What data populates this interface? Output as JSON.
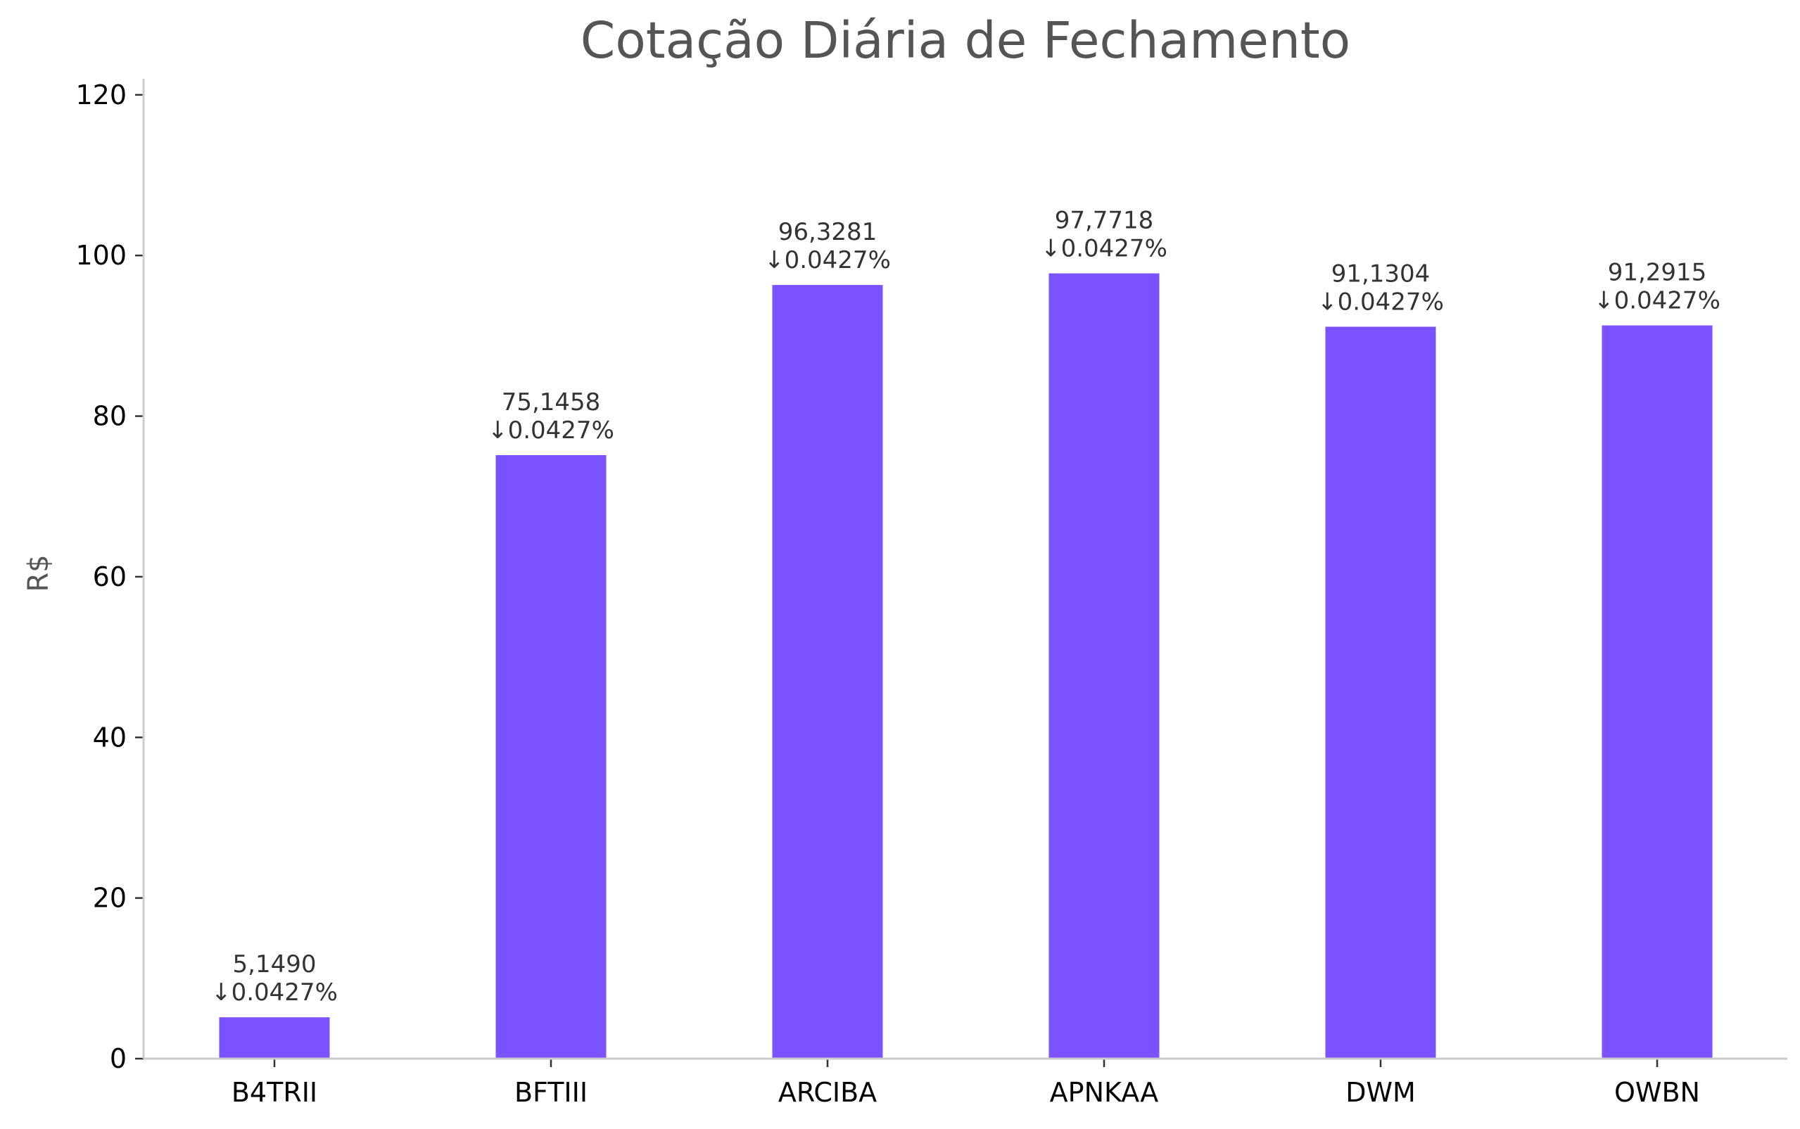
{
  "chart_data": {
    "type": "bar",
    "title": "Cotação Diária de Fechamento",
    "xlabel": "",
    "ylabel": "R$",
    "ylim": [
      0,
      122
    ],
    "yticks": [
      0,
      20,
      40,
      60,
      80,
      100,
      120
    ],
    "categories": [
      "B4TRII",
      "BFTIII",
      "ARCIBA",
      "APNKAA",
      "DWM",
      "OWBN"
    ],
    "values": [
      5.149,
      75.1458,
      96.3281,
      97.7718,
      91.1304,
      91.2915
    ],
    "value_labels": [
      "5,1490",
      "75,1458",
      "96,3281",
      "97,7718",
      "91,1304",
      "91,2915"
    ],
    "change_labels": [
      "↓0.0427%",
      "↓0.0427%",
      "↓0.0427%",
      "↓0.0427%",
      "↓0.0427%",
      "↓0.0427%"
    ],
    "bar_color": "#7b52ff",
    "grid": false,
    "legend": "none"
  }
}
